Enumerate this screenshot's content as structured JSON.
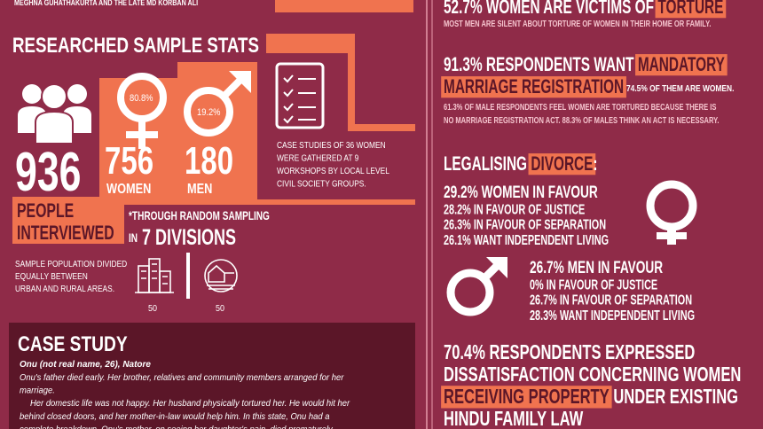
{
  "header": {
    "credits": "MEGHNA GUHATHAKURTA AND THE LATE MD KORBAN ALI"
  },
  "sample_stats": {
    "title": "RESEARCHED SAMPLE STATS",
    "total": "936",
    "total_label": [
      "PEOPLE",
      "INTERVIEWED"
    ],
    "female_percent": "80.8%",
    "male_percent": "19.2%",
    "women_count": "756",
    "women_label": "WOMEN",
    "men_count": "180",
    "men_label": "MEN",
    "case_studies": [
      "CASE STUDIES OF 36 WOMEN",
      "WERE GATHERED AT 9",
      "WORKSHOPS BY LOCAL LEVEL",
      "CIVIL SOCIETY GROUPS."
    ],
    "sampling_note": "*THROUGH RANDOM SAMPLING",
    "sampling_prefix": "IN",
    "divisions": "7 DIVISIONS",
    "population_note": [
      "SAMPLE POPULATION DIVIDED",
      "EQUALLY BETWEEN",
      "URBAN AND RURAL AREAS."
    ],
    "urban": "50",
    "rural": "50"
  },
  "case_study": {
    "title": "CASE STUDY",
    "subtitle": "Onu (not real name, 26), Natore",
    "lines": [
      "Onu's father died early. Her brother, relatives and community members arranged for her",
      "marriage.",
      "Her domestic life was not happy. Her husband physically tortured her. He would hit her",
      "behind closed doors, and her mother-in-law would help him. In this state, Onu had a",
      "complete breakdown. Onu's mother, on seeing her daughter's pain, died prematurely."
    ]
  },
  "torture": {
    "headline": [
      {
        "text": "52.7% WOMEN ARE VICTIMS OF"
      },
      {
        "text": "TORTURE",
        "highlight": true
      }
    ],
    "note": "MOST MEN ARE SILENT ABOUT TORTURE OF WOMEN IN THEIR HOME OR FAMILY."
  },
  "registration": {
    "headline": [
      [
        {
          "text": "91.3% RESPONDENTS WANT"
        },
        {
          "text": "MANDATORY",
          "highlight": true
        }
      ],
      [
        {
          "text": "MARRIAGE REGISTRATION",
          "highlight": true
        }
      ]
    ],
    "aside": "74.5% OF THEM ARE WOMEN.",
    "note": [
      "61.3% OF MALE RESPONDENTS FEEL WOMEN ARE TORTURED BECAUSE THERE IS",
      "NO MARRIAGE REGISTRATION ACT. 88.3% OF MALES THINK AN ACT IS NECESSARY."
    ]
  },
  "divorce": {
    "title": [
      {
        "text": "LEGALISING"
      },
      {
        "text": "DIVORCE",
        "highlight": true
      },
      {
        "text": ":"
      }
    ],
    "women": [
      "29.2% WOMEN IN FAVOUR",
      "28.2% IN FAVOUR OF JUSTICE",
      "26.3% IN FAVOUR OF SEPARATION",
      "26.1% WANT INDEPENDENT LIVING"
    ],
    "men": [
      "26.7% MEN IN FAVOUR",
      "0% IN FAVOUR OF JUSTICE",
      "26.7% IN FAVOUR OF SEPARATION",
      "28.3% WANT INDEPENDENT LIVING"
    ]
  },
  "property": {
    "headline": [
      [
        {
          "text": "70.4% RESPONDENTS EXPRESSED"
        }
      ],
      [
        {
          "text": "DISSATISFACTION CONCERNING WOMEN"
        }
      ],
      [
        {
          "text": "RECEIVING PROPERTY",
          "highlight": true
        },
        {
          "text": "UNDER EXISTING"
        }
      ],
      [
        {
          "text": "HINDU FAMILY LAW"
        }
      ]
    ]
  }
}
